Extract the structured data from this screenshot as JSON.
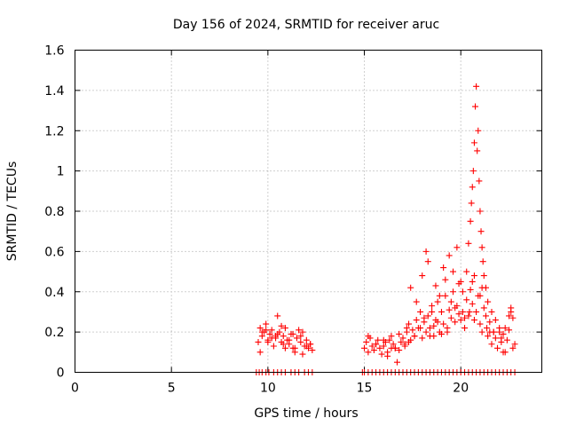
{
  "chart_data": {
    "type": "scatter",
    "title": "Day 156 of 2024, SRMTID for receiver aruc",
    "xlabel": "GPS time / hours",
    "ylabel": "SRMTID / TECUs",
    "xlim": [
      0,
      24.2
    ],
    "ylim": [
      0,
      1.6
    ],
    "xticks": [
      0,
      5,
      10,
      15,
      20
    ],
    "xtick_labels": [
      "0",
      "5",
      "10",
      "15",
      "20"
    ],
    "yticks": [
      0,
      0.2,
      0.4,
      0.6,
      0.8,
      1,
      1.2,
      1.4,
      1.6
    ],
    "ytick_labels": [
      "0",
      "0.2",
      "0.4",
      "0.6",
      "0.8",
      "1",
      "1.2",
      "1.4",
      "1.6"
    ],
    "grid": true,
    "marker": "+",
    "color": "#ff0000",
    "series": [
      {
        "name": "SRMTID",
        "x": [
          9.5,
          9.6,
          9.7,
          9.8,
          9.9,
          10.0,
          10.1,
          10.2,
          10.3,
          10.4,
          10.5,
          10.6,
          10.7,
          10.8,
          10.9,
          11.0,
          11.1,
          11.2,
          11.3,
          11.4,
          11.5,
          11.6,
          11.7,
          11.8,
          11.9,
          12.0,
          12.1,
          12.2,
          12.3,
          9.6,
          9.9,
          10.2,
          10.5,
          10.8,
          11.1,
          11.4,
          11.7,
          12.0,
          10.7,
          9.7,
          10.0,
          10.4,
          10.9,
          11.3,
          11.8,
          12.2,
          15.0,
          15.1,
          15.2,
          15.3,
          15.4,
          15.5,
          15.6,
          15.7,
          15.8,
          15.9,
          16.0,
          16.1,
          16.2,
          16.3,
          16.4,
          16.5,
          16.6,
          16.7,
          16.8,
          16.9,
          17.0,
          17.1,
          17.2,
          17.3,
          17.4,
          17.5,
          17.6,
          17.7,
          17.8,
          17.9,
          18.0,
          18.1,
          18.2,
          18.3,
          18.4,
          18.5,
          18.6,
          18.7,
          18.8,
          18.9,
          19.0,
          19.1,
          19.2,
          19.3,
          19.4,
          19.5,
          19.6,
          19.7,
          19.8,
          19.9,
          20.0,
          20.1,
          20.2,
          20.3,
          20.4,
          20.5,
          20.6,
          20.7,
          20.8,
          20.9,
          21.0,
          21.1,
          21.2,
          21.3,
          21.4,
          21.5,
          21.6,
          21.7,
          21.8,
          21.9,
          22.0,
          22.1,
          22.2,
          22.3,
          22.4,
          22.5,
          22.6,
          22.7,
          22.8,
          15.2,
          15.6,
          16.0,
          16.4,
          16.8,
          17.2,
          17.4,
          17.7,
          18.0,
          18.2,
          18.3,
          18.5,
          18.7,
          18.9,
          19.1,
          19.2,
          19.4,
          19.6,
          19.8,
          19.9,
          20.1,
          20.3,
          20.4,
          20.5,
          20.55,
          20.6,
          20.65,
          20.7,
          20.75,
          20.8,
          20.85,
          20.9,
          20.95,
          21.0,
          21.05,
          21.1,
          21.15,
          21.2,
          21.3,
          21.4,
          21.6,
          21.8,
          22.0,
          22.3,
          22.5,
          22.6,
          17.3,
          17.9,
          18.4,
          18.8,
          19.3,
          19.7,
          20.2,
          20.6,
          21.0,
          21.5,
          22.1,
          16.2,
          16.6,
          17.1,
          17.6,
          18.1,
          18.6,
          19.0,
          19.5,
          20.0,
          20.45,
          20.7,
          21.1,
          21.35,
          21.7,
          22.2,
          22.7
        ],
        "y": [
          0.15,
          0.22,
          0.18,
          0.2,
          0.24,
          0.16,
          0.19,
          0.21,
          0.13,
          0.17,
          0.28,
          0.2,
          0.15,
          0.18,
          0.22,
          0.16,
          0.14,
          0.19,
          0.12,
          0.1,
          0.17,
          0.21,
          0.15,
          0.2,
          0.13,
          0.16,
          0.12,
          0.14,
          0.11,
          0.1,
          0.21,
          0.17,
          0.19,
          0.14,
          0.16,
          0.12,
          0.18,
          0.13,
          0.23,
          0.2,
          0.15,
          0.18,
          0.12,
          0.19,
          0.09,
          0.14,
          0.12,
          0.15,
          0.1,
          0.17,
          0.13,
          0.11,
          0.14,
          0.16,
          0.12,
          0.09,
          0.13,
          0.15,
          0.1,
          0.16,
          0.18,
          0.14,
          0.12,
          0.05,
          0.19,
          0.15,
          0.17,
          0.13,
          0.2,
          0.24,
          0.16,
          0.21,
          0.18,
          0.26,
          0.22,
          0.3,
          0.17,
          0.25,
          0.2,
          0.28,
          0.22,
          0.33,
          0.18,
          0.26,
          0.35,
          0.2,
          0.3,
          0.24,
          0.38,
          0.22,
          0.31,
          0.27,
          0.4,
          0.25,
          0.33,
          0.29,
          0.45,
          0.3,
          0.22,
          0.36,
          0.28,
          0.41,
          0.34,
          0.26,
          0.3,
          0.38,
          0.24,
          0.2,
          0.32,
          0.28,
          0.18,
          0.25,
          0.14,
          0.2,
          0.17,
          0.12,
          0.22,
          0.15,
          0.19,
          0.1,
          0.16,
          0.21,
          0.3,
          0.27,
          0.14,
          0.18,
          0.14,
          0.16,
          0.12,
          0.11,
          0.22,
          0.42,
          0.35,
          0.48,
          0.6,
          0.55,
          0.3,
          0.43,
          0.38,
          0.52,
          0.46,
          0.58,
          0.5,
          0.62,
          0.44,
          0.4,
          0.5,
          0.64,
          0.75,
          0.84,
          0.92,
          1.0,
          1.14,
          1.32,
          1.42,
          1.1,
          1.2,
          0.95,
          0.8,
          0.7,
          0.62,
          0.55,
          0.48,
          0.42,
          0.35,
          0.3,
          0.26,
          0.2,
          0.22,
          0.28,
          0.32,
          0.15,
          0.22,
          0.18,
          0.25,
          0.2,
          0.32,
          0.27,
          0.45,
          0.38,
          0.2,
          0.17,
          0.08,
          0.12,
          0.14,
          0.18,
          0.27,
          0.23,
          0.19,
          0.35,
          0.26,
          0.3,
          0.48,
          0.42,
          0.22,
          0.2,
          0.1,
          0.12
        ]
      },
      {
        "name": "SRMTID (zero)",
        "x": [
          9.4,
          9.55,
          9.7,
          9.9,
          10.05,
          10.3,
          10.5,
          10.7,
          10.9,
          11.2,
          11.4,
          11.6,
          11.9,
          12.1,
          12.3,
          14.9,
          15.0,
          15.2,
          15.4,
          15.6,
          15.8,
          16.0,
          16.2,
          16.4,
          16.6,
          16.8,
          17.0,
          17.2,
          17.4,
          17.6,
          17.8,
          18.0,
          18.2,
          18.4,
          18.6,
          18.8,
          19.0,
          19.2,
          19.4,
          19.6,
          19.8,
          20.0,
          20.2,
          20.4,
          20.6,
          20.8,
          21.0,
          21.2,
          21.4,
          21.6,
          21.8,
          22.0,
          22.2,
          22.4,
          22.6,
          22.8
        ],
        "y": [
          0,
          0,
          0,
          0,
          0,
          0,
          0,
          0,
          0,
          0,
          0,
          0,
          0,
          0,
          0,
          0,
          0,
          0,
          0,
          0,
          0,
          0,
          0,
          0,
          0,
          0,
          0,
          0,
          0,
          0,
          0,
          0,
          0,
          0,
          0,
          0,
          0,
          0,
          0,
          0,
          0,
          0,
          0,
          0,
          0,
          0,
          0,
          0,
          0,
          0,
          0,
          0,
          0,
          0,
          0,
          0
        ]
      }
    ]
  }
}
